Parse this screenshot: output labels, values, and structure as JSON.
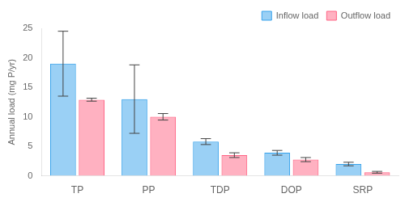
{
  "chart_data": {
    "type": "bar",
    "categories": [
      "TP",
      "PP",
      "TDP",
      "DOP",
      "SRP"
    ],
    "series": [
      {
        "name": "Inflow load",
        "values": [
          19.0,
          13.0,
          5.8,
          3.9,
          2.0
        ],
        "errors": [
          5.5,
          5.8,
          0.5,
          0.4,
          0.3
        ]
      },
      {
        "name": "Outflow load",
        "values": [
          12.9,
          10.0,
          3.5,
          2.75,
          0.6
        ],
        "errors": [
          0.25,
          0.55,
          0.4,
          0.35,
          0.15
        ]
      }
    ],
    "ylabel": "Annual load (mg P/yr)",
    "ylim": [
      0,
      25
    ],
    "yticks": [
      0,
      5,
      10,
      15,
      20,
      25
    ],
    "grid": false,
    "legend": "upper right"
  }
}
